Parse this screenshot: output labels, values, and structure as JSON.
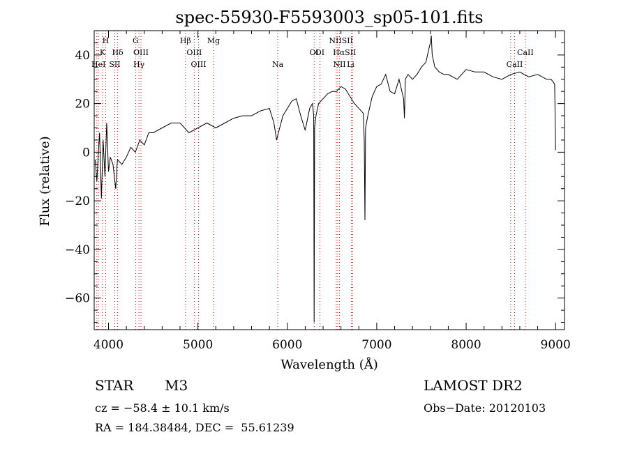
{
  "chart_data": {
    "type": "line",
    "title": "spec-55930-F5593003_sp05-101.fits",
    "xlabel": "Wavelength (Å)",
    "ylabel": "Flux (relative)",
    "xlim": [
      3840,
      9100
    ],
    "ylim": [
      -73,
      50
    ],
    "x_ticks": [
      4000,
      5000,
      6000,
      7000,
      8000,
      9000
    ],
    "y_ticks": [
      -60,
      -40,
      -20,
      0,
      20,
      40
    ],
    "grid": false,
    "series": [
      {
        "x": [
          3850,
          3870,
          3890,
          3900,
          3920,
          3940,
          3960,
          3980,
          4000,
          4020,
          4050,
          4080,
          4100,
          4150,
          4200,
          4250,
          4300,
          4350,
          4400,
          4450,
          4500,
          4600,
          4700,
          4800,
          4900,
          5000,
          5100,
          5200,
          5300,
          5400,
          5500,
          5600,
          5700,
          5800,
          5850,
          5880,
          5900,
          5950,
          6000,
          6050,
          6100,
          6150,
          6200,
          6250,
          6280,
          6295,
          6300,
          6305,
          6320,
          6350,
          6400,
          6450,
          6500,
          6550,
          6600,
          6650,
          6700,
          6750,
          6800,
          6850,
          6860,
          6868,
          6875,
          6900,
          6950,
          7000,
          7050,
          7100,
          7150,
          7200,
          7250,
          7300,
          7310,
          7320,
          7350,
          7400,
          7450,
          7500,
          7550,
          7580,
          7600,
          7610,
          7620,
          7650,
          7700,
          7750,
          7800,
          7900,
          8000,
          8100,
          8200,
          8300,
          8400,
          8500,
          8600,
          8700,
          8800,
          8900,
          8950,
          8990,
          9000,
          9005
        ],
        "y": [
          -3,
          -12,
          2,
          8,
          -19,
          5,
          -10,
          12,
          -8,
          -2,
          -5,
          -15,
          -3,
          -5,
          -2,
          2,
          0,
          5,
          3,
          8,
          8,
          10,
          12,
          12,
          8,
          10,
          12,
          10,
          12,
          14,
          15,
          15,
          17,
          18,
          12,
          5,
          8,
          15,
          18,
          21,
          22,
          15,
          9,
          18,
          20,
          15,
          -70,
          10,
          15,
          20,
          22,
          24,
          25,
          25,
          27,
          26,
          23,
          20,
          18,
          16,
          5,
          -28,
          10,
          15,
          23,
          27,
          28,
          32,
          25,
          24,
          30,
          22,
          14,
          30,
          32,
          30,
          32,
          35,
          37,
          42,
          45,
          48,
          40,
          35,
          33,
          32,
          32,
          30,
          34,
          33,
          33,
          31,
          30,
          32,
          33,
          31,
          32,
          30,
          30,
          28,
          1,
          1
        ]
      }
    ],
    "lines_top": [
      {
        "label": "H",
        "x": 3968
      },
      {
        "label": "G",
        "x": 4304
      },
      {
        "label": "Hβ",
        "x": 4861
      },
      {
        "label": "Mg",
        "x": 5175
      },
      {
        "label": "NIISII",
        "x": 6600
      }
    ],
    "lines_mid": [
      {
        "label": "K",
        "x": 3934
      },
      {
        "label": "Hδ",
        "x": 4102
      },
      {
        "label": "OIII",
        "x": 4363
      },
      {
        "label": "OIII",
        "x": 4959
      },
      {
        "label": "OI",
        "x": 6364
      },
      {
        "label": "OI",
        "x": 6300
      },
      {
        "label": "HαSII",
        "x": 6640
      },
      {
        "label": "CaII",
        "x": 8662
      }
    ],
    "lines_low": [
      {
        "label": "HeI",
        "x": 3889
      },
      {
        "label": "SII",
        "x": 4070
      },
      {
        "label": "Hγ",
        "x": 4340
      },
      {
        "label": "OIII",
        "x": 5007
      },
      {
        "label": "Na",
        "x": 5893
      },
      {
        "label": "NII",
        "x": 6583
      },
      {
        "label": "Li",
        "x": 6708
      },
      {
        "label": "CaII",
        "x": 8542
      }
    ],
    "dotted_lines": [
      3869,
      3889,
      3934,
      3968,
      4070,
      4102,
      4304,
      4340,
      4363,
      4861,
      4959,
      5007,
      5175,
      5893,
      6300,
      6364,
      6548,
      6563,
      6583,
      6716,
      6731,
      8498,
      8542,
      8662
    ]
  },
  "info": {
    "object_class": "STAR",
    "subclass": "M3",
    "survey": "LAMOST DR2",
    "cz": "cz = −58.4 ± 10.1 km/s",
    "obs_date": "Obs−Date: 20120103",
    "coords": "RA = 184.38484, DEC =  55.61239"
  },
  "colors": {
    "spectrum": "#000000",
    "line_marker": "#e00000",
    "axes": "#000000"
  }
}
